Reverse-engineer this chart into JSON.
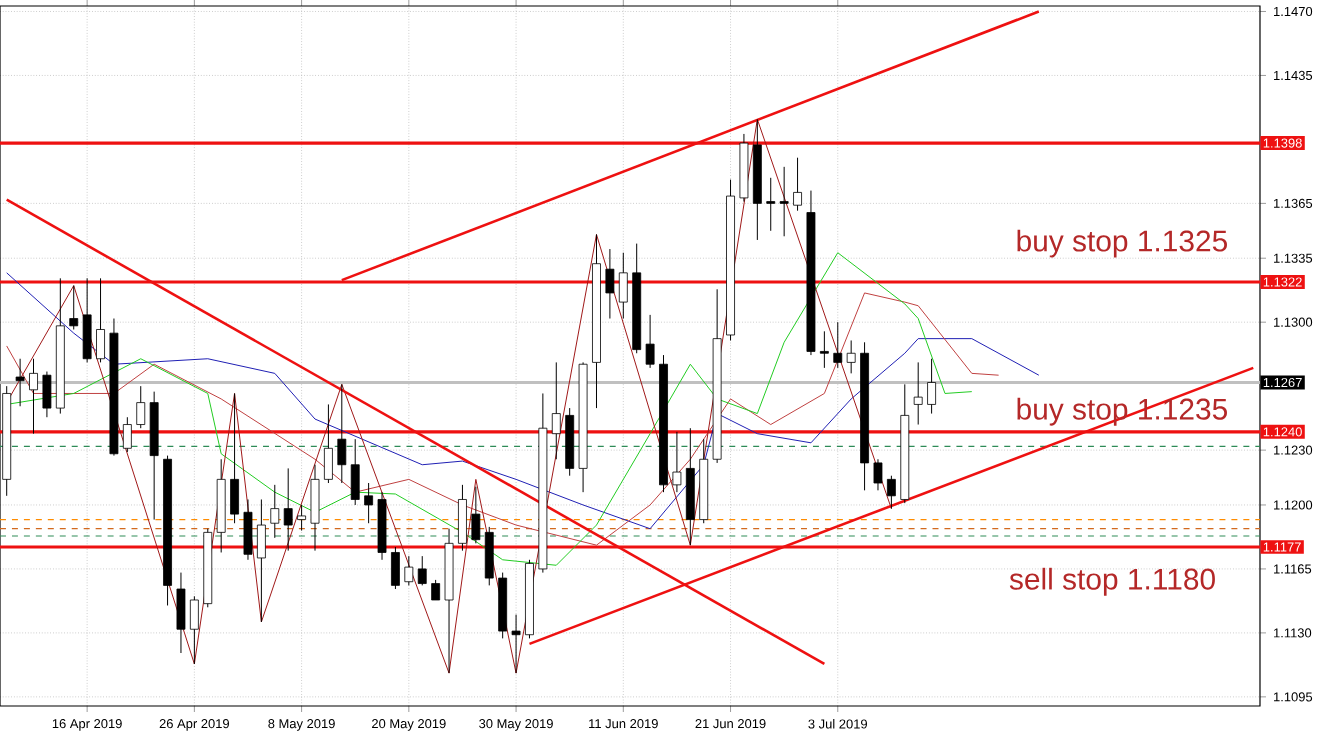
{
  "chart_data": {
    "type": "candlestick",
    "categories": [
      null,
      null,
      null,
      null,
      null,
      null,
      "16 Apr 2019",
      null,
      null,
      null,
      null,
      null,
      null,
      null,
      "26 Apr 2019",
      null,
      null,
      null,
      null,
      null,
      null,
      null,
      "8 May 2019",
      null,
      null,
      null,
      null,
      null,
      null,
      null,
      "20 May 2019",
      null,
      null,
      null,
      null,
      null,
      null,
      null,
      "30 May 2019",
      null,
      null,
      null,
      null,
      null,
      null,
      null,
      "11 Jun 2019",
      null,
      null,
      null,
      null,
      null,
      null,
      null,
      "21 Jun 2019",
      null,
      null,
      null,
      null,
      null,
      null,
      null,
      "3 Jul 2019",
      null,
      null,
      null,
      null,
      null,
      null,
      null,
      null,
      null,
      null,
      null,
      null,
      null,
      null,
      null,
      null,
      null,
      null,
      null,
      null,
      null,
      null,
      null,
      null,
      null,
      null,
      null,
      null,
      null,
      null,
      null
    ],
    "ohlc": [
      [
        1.1214,
        1.1265,
        1.1205,
        1.1261
      ],
      [
        1.127,
        1.128,
        1.1254,
        1.1268
      ],
      [
        1.1263,
        1.128,
        1.1239,
        1.1272
      ],
      [
        1.1271,
        1.1273,
        1.1248,
        1.1253
      ],
      [
        1.1253,
        1.1324,
        1.125,
        1.1298
      ],
      [
        1.1302,
        1.132,
        1.1296,
        1.1298
      ],
      [
        1.1304,
        1.1324,
        1.1278,
        1.128
      ],
      [
        1.128,
        1.1324,
        1.1278,
        1.1296
      ],
      [
        1.1294,
        1.1302,
        1.1227,
        1.1228
      ],
      [
        1.1231,
        1.1248,
        1.1229,
        1.1244
      ],
      [
        1.1244,
        1.1265,
        1.1242,
        1.1256
      ],
      [
        1.1256,
        1.1262,
        1.1192,
        1.1227
      ],
      [
        1.1225,
        1.1227,
        1.1145,
        1.1156
      ],
      [
        1.1154,
        1.1163,
        1.1119,
        1.1132
      ],
      [
        1.1132,
        1.115,
        1.1113,
        1.1148
      ],
      [
        1.1146,
        1.1187,
        1.1144,
        1.1185
      ],
      [
        1.1185,
        1.1225,
        1.1174,
        1.1214
      ],
      [
        1.1214,
        1.1261,
        1.119,
        1.1195
      ],
      [
        1.1196,
        1.1203,
        1.117,
        1.1173
      ],
      [
        1.1171,
        1.1203,
        1.1136,
        1.1189
      ],
      [
        1.119,
        1.1211,
        1.1182,
        1.1198
      ],
      [
        1.1198,
        1.122,
        1.1175,
        1.1189
      ],
      [
        1.1192,
        1.12,
        1.1186,
        1.1194
      ],
      [
        1.119,
        1.1222,
        1.1175,
        1.1214
      ],
      [
        1.1214,
        1.1255,
        1.1212,
        1.1231
      ],
      [
        1.1236,
        1.1266,
        1.1212,
        1.1222
      ],
      [
        1.1222,
        1.1236,
        1.12,
        1.1203
      ],
      [
        1.1205,
        1.1212,
        1.119,
        1.12
      ],
      [
        1.1203,
        1.1207,
        1.117,
        1.1174
      ],
      [
        1.1174,
        1.1177,
        1.1154,
        1.1156
      ],
      [
        1.1158,
        1.1172,
        1.1156,
        1.1166
      ],
      [
        1.1165,
        1.1172,
        1.1156,
        1.1157
      ],
      [
        1.1157,
        1.1159,
        1.1148,
        1.1148
      ],
      [
        1.1148,
        1.1187,
        1.1108,
        1.1179
      ],
      [
        1.1179,
        1.1211,
        1.1175,
        1.1203
      ],
      [
        1.1195,
        1.121,
        1.1179,
        1.1181
      ],
      [
        1.1185,
        1.1188,
        1.1156,
        1.116
      ],
      [
        1.116,
        1.1163,
        1.1127,
        1.1131
      ],
      [
        1.1131,
        1.114,
        1.1108,
        1.1129
      ],
      [
        1.1129,
        1.117,
        1.1127,
        1.1168
      ],
      [
        1.1165,
        1.1261,
        1.1163,
        1.1242
      ],
      [
        1.1239,
        1.1278,
        1.1225,
        1.125
      ],
      [
        1.1249,
        1.1253,
        1.1216,
        1.122
      ],
      [
        1.122,
        1.1278,
        1.1207,
        1.1277
      ],
      [
        1.1278,
        1.1348,
        1.1253,
        1.1332
      ],
      [
        1.1329,
        1.134,
        1.1302,
        1.1316
      ],
      [
        1.1311,
        1.1338,
        1.1302,
        1.1327
      ],
      [
        1.1327,
        1.1343,
        1.1283,
        1.1285
      ],
      [
        1.1288,
        1.1304,
        1.1275,
        1.1277
      ],
      [
        1.1277,
        1.1282,
        1.1207,
        1.1211
      ],
      [
        1.1211,
        1.124,
        1.1207,
        1.1218
      ],
      [
        1.122,
        1.1242,
        1.1178,
        1.1192
      ],
      [
        1.1192,
        1.1236,
        1.119,
        1.1225
      ],
      [
        1.1225,
        1.1318,
        1.1223,
        1.1291
      ],
      [
        1.1293,
        1.1378,
        1.129,
        1.1369
      ],
      [
        1.1368,
        1.1403,
        1.1366,
        1.1398
      ],
      [
        1.1397,
        1.1411,
        1.1345,
        1.1365
      ],
      [
        1.1366,
        1.1379,
        1.135,
        1.1365
      ],
      [
        1.1366,
        1.1385,
        1.1347,
        1.1365
      ],
      [
        1.1364,
        1.139,
        1.1361,
        1.1371
      ],
      [
        1.136,
        1.1372,
        1.1282,
        1.1284
      ],
      [
        1.1284,
        1.1295,
        1.1275,
        1.1283
      ],
      [
        1.1283,
        1.13,
        1.1275,
        1.1278
      ],
      [
        1.1278,
        1.129,
        1.1272,
        1.1283
      ],
      [
        1.1283,
        1.1289,
        1.1208,
        1.1223
      ],
      [
        1.1223,
        1.1225,
        1.1208,
        1.1212
      ],
      [
        1.1214,
        1.1216,
        1.1198,
        1.1205
      ],
      [
        1.1203,
        1.1266,
        1.1201,
        1.1249
      ],
      [
        1.1255,
        1.1278,
        1.1244,
        1.1259
      ],
      [
        1.1255,
        1.128,
        1.125,
        1.1267
      ],
      null,
      null,
      null,
      null,
      null,
      null,
      null,
      null,
      null,
      null,
      null,
      null,
      null,
      null,
      null,
      null,
      null,
      null,
      null,
      null,
      null,
      null,
      null,
      null
    ],
    "series": [
      {
        "type": "line",
        "color": "#1f1fb4",
        "values": [
          1.1327,
          null,
          null,
          null,
          null,
          1.1294,
          null,
          null,
          1.1277,
          null,
          null,
          null,
          null,
          null,
          null,
          1.128,
          null,
          null,
          null,
          null,
          1.1272,
          null,
          null,
          1.1247,
          null,
          null,
          null,
          null,
          null,
          null,
          null,
          1.1222,
          null,
          null,
          1.1224,
          null,
          null,
          null,
          1.1214,
          null,
          null,
          null,
          null,
          1.12,
          null,
          null,
          null,
          null,
          1.1187,
          null,
          null,
          null,
          1.1222,
          1.125,
          null,
          null,
          1.1239,
          null,
          null,
          null,
          1.1234,
          null,
          null,
          1.1258,
          null,
          null,
          null,
          1.1283,
          1.1291,
          null,
          null,
          null,
          1.1291,
          null,
          null,
          null,
          null,
          1.1271,
          null,
          null,
          null,
          null,
          null,
          null,
          null,
          null,
          null,
          null,
          null,
          null,
          null,
          null,
          null,
          null
        ]
      },
      {
        "type": "line",
        "color": "#c04040",
        "values": [
          1.1287,
          null,
          1.1261,
          null,
          null,
          null,
          null,
          null,
          1.1261,
          null,
          null,
          1.1277,
          null,
          null,
          null,
          null,
          1.1258,
          null,
          null,
          null,
          null,
          null,
          null,
          1.1225,
          null,
          null,
          1.1207,
          null,
          null,
          null,
          1.1214,
          null,
          null,
          null,
          1.12,
          null,
          null,
          null,
          1.1189,
          null,
          null,
          null,
          null,
          null,
          1.1178,
          null,
          null,
          null,
          1.12,
          null,
          null,
          1.1225,
          null,
          null,
          1.1258,
          null,
          null,
          1.1244,
          null,
          null,
          null,
          1.1261,
          null,
          null,
          1.1316,
          null,
          null,
          1.1311,
          1.1309,
          null,
          null,
          null,
          1.1272,
          null,
          1.1271,
          null,
          null,
          null,
          null,
          null,
          null,
          null,
          null,
          null,
          null,
          null,
          null,
          null,
          null,
          null,
          null,
          null,
          null,
          null
        ]
      },
      {
        "type": "line",
        "color": "#22cc22",
        "values": [
          1.1255,
          null,
          null,
          null,
          null,
          1.1261,
          null,
          null,
          null,
          null,
          1.128,
          null,
          null,
          null,
          null,
          1.1261,
          1.1228,
          null,
          null,
          null,
          1.1207,
          null,
          null,
          1.1196,
          null,
          null,
          1.1207,
          null,
          null,
          1.1206,
          null,
          null,
          null,
          null,
          1.1185,
          null,
          null,
          1.117,
          null,
          null,
          null,
          1.1167,
          null,
          null,
          1.1189,
          null,
          null,
          null,
          1.1239,
          null,
          null,
          1.1277,
          null,
          1.1258,
          null,
          null,
          1.125,
          null,
          1.1289,
          null,
          null,
          null,
          1.1338,
          null,
          null,
          null,
          null,
          1.131,
          1.1302,
          null,
          1.1261,
          null,
          1.1262,
          null,
          null,
          null,
          null,
          null,
          null,
          null,
          null,
          null,
          null,
          null,
          null,
          null,
          null,
          null,
          null,
          null,
          null,
          null,
          null,
          null
        ]
      },
      {
        "type": "line",
        "color": "#a01818",
        "values": [
          1.1256,
          null,
          null,
          null,
          null,
          1.132,
          null,
          null,
          null,
          null,
          null,
          null,
          null,
          null,
          1.1113,
          null,
          null,
          1.1261,
          null,
          1.1136,
          null,
          null,
          null,
          null,
          null,
          1.1266,
          null,
          null,
          null,
          null,
          null,
          null,
          null,
          1.1108,
          null,
          1.1214,
          null,
          null,
          1.1108,
          null,
          null,
          null,
          null,
          null,
          1.1348,
          null,
          null,
          null,
          null,
          null,
          null,
          1.1178,
          null,
          null,
          null,
          null,
          1.1411,
          null,
          null,
          null,
          null,
          null,
          null,
          null,
          null,
          null,
          1.1198,
          null,
          null,
          null,
          null,
          null,
          null,
          null,
          null,
          null,
          null,
          null,
          null,
          null,
          null,
          null,
          null,
          null,
          null,
          null,
          null,
          null,
          null,
          null,
          null,
          null,
          null,
          null
        ]
      },
      {
        "type": "line",
        "color": "#ee1111",
        "values": [
          null,
          null,
          null,
          null,
          null,
          null,
          null,
          null,
          null,
          null,
          null,
          null,
          null,
          null,
          null,
          null,
          null,
          null,
          null,
          null,
          null,
          null,
          null,
          null,
          null,
          1.1323,
          null,
          null,
          null,
          null,
          null,
          null,
          null,
          null,
          null,
          null,
          null,
          null,
          null,
          null,
          null,
          null,
          null,
          null,
          null,
          null,
          null,
          null,
          null,
          null,
          null,
          null,
          null,
          null,
          null,
          null,
          null,
          null,
          null,
          null,
          null,
          null,
          null,
          null,
          null,
          null,
          null,
          null,
          null,
          null,
          null,
          null,
          null,
          null,
          null,
          null,
          null,
          1.147,
          null,
          null,
          null,
          null,
          null,
          null,
          null,
          null,
          null,
          null,
          null,
          null,
          null,
          null,
          null,
          null
        ]
      },
      {
        "type": "line",
        "color": "#ee1111",
        "values": [
          null,
          null,
          null,
          null,
          null,
          null,
          null,
          null,
          null,
          null,
          null,
          null,
          null,
          null,
          null,
          null,
          null,
          null,
          null,
          null,
          null,
          null,
          null,
          null,
          null,
          null,
          null,
          null,
          null,
          null,
          null,
          null,
          null,
          null,
          null,
          null,
          null,
          null,
          null,
          1.1124,
          null,
          null,
          null,
          null,
          null,
          null,
          null,
          null,
          null,
          null,
          null,
          null,
          null,
          null,
          null,
          null,
          null,
          null,
          null,
          null,
          null,
          null,
          null,
          null,
          null,
          null,
          null,
          null,
          null,
          null,
          null,
          null,
          null,
          null,
          null,
          null,
          null,
          null,
          null,
          null,
          null,
          null,
          null,
          null,
          null,
          null,
          null,
          null,
          null,
          null,
          null,
          null,
          null,
          1.1275
        ]
      },
      {
        "type": "line",
        "color": "#ee1111",
        "values": [
          1.1367,
          null,
          null,
          null,
          null,
          null,
          null,
          null,
          null,
          null,
          null,
          null,
          null,
          null,
          null,
          null,
          null,
          null,
          null,
          null,
          null,
          null,
          null,
          null,
          null,
          null,
          null,
          null,
          null,
          null,
          null,
          null,
          null,
          null,
          null,
          null,
          null,
          null,
          null,
          null,
          null,
          null,
          null,
          null,
          null,
          null,
          null,
          null,
          null,
          null,
          null,
          null,
          null,
          null,
          null,
          null,
          null,
          null,
          null,
          null,
          null,
          1.1113,
          null,
          null,
          null,
          null,
          null,
          null,
          null,
          null,
          null,
          null,
          null,
          null,
          null,
          null,
          null,
          null,
          null,
          null,
          null,
          null,
          null,
          null,
          null,
          null,
          null,
          null,
          null,
          null,
          null,
          null,
          null,
          null
        ]
      }
    ],
    "ylim": [
      1.109,
      1.1473
    ],
    "yticks": [
      {
        "value": 1.147,
        "label": "1.1470"
      },
      1.1435,
      1.1365,
      1.1335,
      {
        "value": 1.13,
        "label": "1.1300"
      },
      {
        "value": 1.123,
        "label": "1.1230"
      },
      {
        "value": 1.12,
        "label": "1.1200"
      },
      1.1165,
      {
        "value": 1.113,
        "label": "1.1130"
      },
      1.1095
    ],
    "ref_lines": [
      {
        "axis": "y",
        "value": 1.1398,
        "label": "1.1398",
        "color": "#ee1111"
      },
      {
        "axis": "y",
        "value": 1.1322,
        "label": "1.1322",
        "color": "#ee1111"
      },
      {
        "axis": "y",
        "value": 1.1267,
        "label": "1.1267",
        "color": "#c0c0c0"
      },
      {
        "axis": "y",
        "value": 1.124,
        "label": "1.1240",
        "color": "#ee1111"
      },
      {
        "axis": "y",
        "value": 1.1177,
        "label": "1.1177",
        "color": "#ee1111"
      },
      {
        "axis": "y",
        "value": 1.1232,
        "color": "#2e8b57",
        "line_style": "dashed"
      },
      {
        "axis": "y",
        "value": 1.1192,
        "color": "#ff8c00",
        "line_style": "dashed"
      },
      {
        "axis": "y",
        "value": 1.1187,
        "color": "#d2691e",
        "line_style": "dashed"
      },
      {
        "axis": "y",
        "value": 1.1183,
        "color": "#2e8b57",
        "line_style": "dashed"
      }
    ],
    "annotations": [
      "buy stop 1.1325",
      "buy stop 1.1235",
      "sell stop 1.1180"
    ],
    "grid": true
  }
}
